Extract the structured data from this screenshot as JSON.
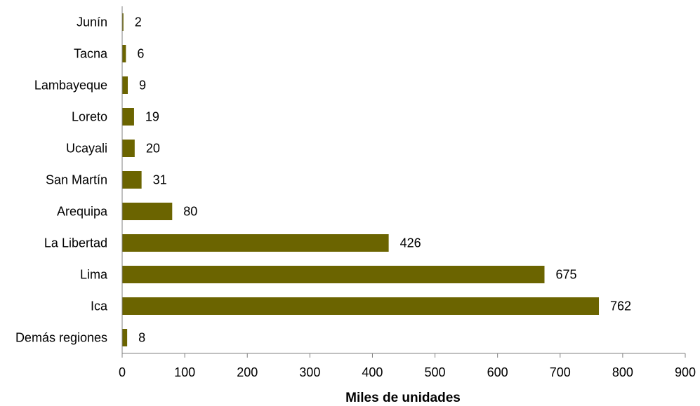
{
  "chart_data": {
    "type": "bar",
    "orientation": "horizontal",
    "categories": [
      "Junín",
      "Tacna",
      "Lambayeque",
      "Loreto",
      "Ucayali",
      "San Martín",
      "Arequipa",
      "La Libertad",
      "Lima",
      "Ica",
      "Demás regiones"
    ],
    "values": [
      2,
      6,
      9,
      19,
      20,
      31,
      80,
      426,
      675,
      762,
      8
    ],
    "value_labels": [
      "2",
      "6",
      "9",
      "19",
      "20",
      "31",
      "80",
      "426",
      "675",
      "762",
      "8"
    ],
    "xlabel": "Miles de unidades",
    "ylabel": "",
    "xlim": [
      0,
      900
    ],
    "xticks": [
      "0",
      "100",
      "200",
      "300",
      "400",
      "500",
      "600",
      "700",
      "800",
      "900"
    ],
    "grid": false,
    "legend": "none",
    "colors": {
      "bar": "#6B6400",
      "axis": "#808080"
    }
  }
}
